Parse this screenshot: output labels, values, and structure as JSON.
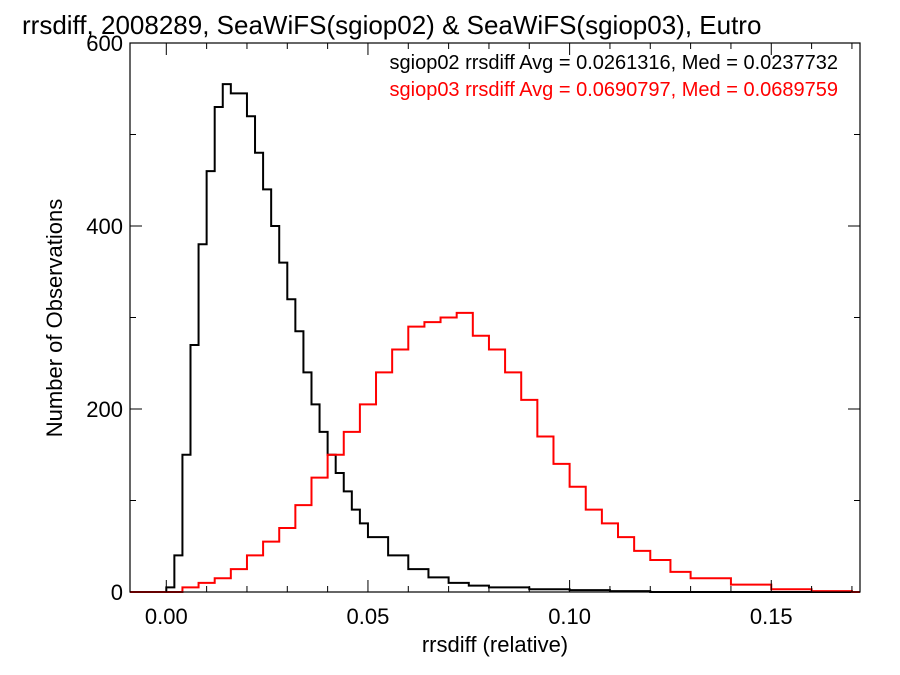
{
  "chart_data": {
    "type": "line",
    "style": "step-histogram",
    "title": "rrsdiff, 2008289, SeaWiFS(sgiop02) & SeaWiFS(sgiop03), Eutro",
    "xlabel": "rrsdiff (relative)",
    "ylabel": "Number of Observations",
    "xlim": [
      -0.009,
      0.172
    ],
    "ylim": [
      0,
      600
    ],
    "x_ticks": [
      0.0,
      0.05,
      0.1,
      0.15
    ],
    "x_tick_labels": [
      "0.00",
      "0.05",
      "0.10",
      "0.15"
    ],
    "y_ticks": [
      0,
      200,
      400,
      600
    ],
    "y_tick_labels": [
      "0",
      "200",
      "400",
      "600"
    ],
    "grid": false,
    "legend_position": "top-right",
    "series": [
      {
        "name": "sgiop02",
        "color": "#000000",
        "legend": "sgiop02 rrsdiff Avg = 0.0261316, Med = 0.0237732",
        "x": [
          0.0,
          0.002,
          0.004,
          0.006,
          0.008,
          0.01,
          0.012,
          0.014,
          0.016,
          0.018,
          0.02,
          0.022,
          0.024,
          0.026,
          0.028,
          0.03,
          0.032,
          0.034,
          0.036,
          0.038,
          0.04,
          0.042,
          0.044,
          0.046,
          0.048,
          0.05,
          0.055,
          0.06,
          0.065,
          0.07,
          0.075,
          0.08,
          0.09,
          0.1,
          0.11,
          0.12,
          0.14,
          0.17
        ],
        "values": [
          5,
          40,
          150,
          270,
          380,
          460,
          530,
          555,
          545,
          545,
          520,
          480,
          440,
          400,
          360,
          320,
          285,
          240,
          205,
          175,
          150,
          130,
          110,
          90,
          75,
          60,
          40,
          25,
          16,
          10,
          7,
          5,
          3,
          2,
          1,
          0,
          0,
          0
        ]
      },
      {
        "name": "sgiop03",
        "color": "#ff0000",
        "legend": "sgiop03 rrsdiff Avg = 0.0690797, Med = 0.0689759",
        "x": [
          0.0,
          0.004,
          0.008,
          0.012,
          0.016,
          0.02,
          0.024,
          0.028,
          0.032,
          0.036,
          0.04,
          0.044,
          0.048,
          0.052,
          0.056,
          0.06,
          0.064,
          0.068,
          0.072,
          0.076,
          0.08,
          0.084,
          0.088,
          0.092,
          0.096,
          0.1,
          0.104,
          0.108,
          0.112,
          0.116,
          0.12,
          0.125,
          0.13,
          0.14,
          0.15,
          0.16,
          0.17
        ],
        "values": [
          0,
          5,
          10,
          15,
          25,
          40,
          55,
          70,
          95,
          125,
          150,
          175,
          205,
          240,
          265,
          290,
          295,
          300,
          305,
          280,
          265,
          240,
          210,
          170,
          140,
          115,
          90,
          75,
          60,
          45,
          35,
          22,
          15,
          8,
          3,
          1,
          0
        ]
      }
    ]
  }
}
